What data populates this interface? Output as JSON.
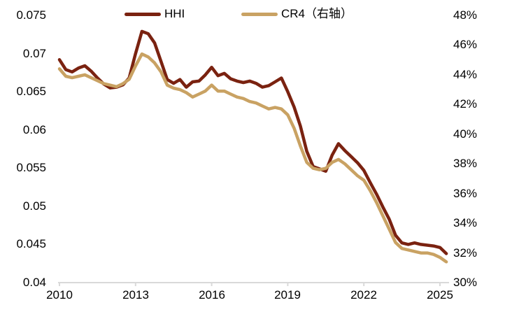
{
  "legend": [
    {
      "label": "HHI",
      "color": "#7A2210"
    },
    {
      "label": "CR4（右轴）",
      "color": "#C9A263"
    }
  ],
  "chart_data": {
    "type": "line",
    "title": "",
    "xlabel": "",
    "ylabel_left": "",
    "ylabel_right": "",
    "grid": false,
    "legend_position": "top-center",
    "axis_line_color": "#D9D9D9",
    "text_color": "#000000",
    "left_axis": {
      "min": 0.04,
      "max": 0.075,
      "tick_values": [
        0.075,
        0.07,
        0.065,
        0.06,
        0.055,
        0.05,
        0.045,
        0.04
      ],
      "tick_labels": [
        "0.075",
        "0.07",
        "0.065",
        "0.06",
        "0.055",
        "0.05",
        "0.045",
        "0.04"
      ]
    },
    "right_axis": {
      "min": 30,
      "max": 48,
      "tick_values": [
        48,
        46,
        44,
        42,
        40,
        38,
        36,
        34,
        32,
        30
      ],
      "tick_labels": [
        "48%",
        "46%",
        "44%",
        "42%",
        "40%",
        "38%",
        "36%",
        "34%",
        "32%",
        "30%"
      ]
    },
    "x_axis": {
      "min": 2010,
      "max": 2025.35,
      "tick_values": [
        2010,
        2013,
        2016,
        2019,
        2022,
        2025
      ],
      "tick_labels": [
        "2010",
        "2013",
        "2016",
        "2019",
        "2022",
        "2025"
      ]
    },
    "x": [
      2010,
      2010.25,
      2010.5,
      2010.75,
      2011,
      2011.25,
      2011.5,
      2011.75,
      2012,
      2012.25,
      2012.5,
      2012.75,
      2013,
      2013.25,
      2013.5,
      2013.75,
      2014,
      2014.25,
      2014.5,
      2014.75,
      2015,
      2015.25,
      2015.5,
      2015.75,
      2016,
      2016.25,
      2016.5,
      2016.75,
      2017,
      2017.25,
      2017.5,
      2017.75,
      2018,
      2018.25,
      2018.5,
      2018.75,
      2019,
      2019.25,
      2019.5,
      2019.75,
      2020,
      2020.25,
      2020.5,
      2020.75,
      2021,
      2021.25,
      2021.5,
      2021.75,
      2022,
      2022.25,
      2022.5,
      2022.75,
      2023,
      2023.25,
      2023.5,
      2023.75,
      2024,
      2024.25,
      2024.5,
      2024.75,
      2025,
      2025.25
    ],
    "series": [
      {
        "name": "HHI",
        "axis": "left",
        "color": "#7A2210",
        "values": [
          0.0692,
          0.0679,
          0.0676,
          0.0681,
          0.0684,
          0.0677,
          0.0668,
          0.066,
          0.0655,
          0.0656,
          0.0659,
          0.0668,
          0.07,
          0.0729,
          0.0726,
          0.0714,
          0.069,
          0.0666,
          0.0661,
          0.0666,
          0.0656,
          0.0663,
          0.0664,
          0.0672,
          0.0682,
          0.0671,
          0.0674,
          0.0667,
          0.0664,
          0.0662,
          0.0664,
          0.0661,
          0.0656,
          0.0658,
          0.0663,
          0.0668,
          0.065,
          0.063,
          0.0605,
          0.0572,
          0.0552,
          0.0549,
          0.0546,
          0.0567,
          0.0582,
          0.0573,
          0.0565,
          0.0557,
          0.0547,
          0.0531,
          0.0516,
          0.0499,
          0.0483,
          0.0462,
          0.0452,
          0.045,
          0.0452,
          0.045,
          0.0449,
          0.0448,
          0.0446,
          0.0438
        ]
      },
      {
        "name": "CR4（右轴）",
        "axis": "right",
        "color": "#C9A263",
        "values": [
          44.4,
          43.9,
          43.8,
          43.9,
          44.0,
          43.8,
          43.6,
          43.4,
          43.3,
          43.2,
          43.4,
          43.7,
          44.6,
          45.4,
          45.2,
          44.8,
          44.2,
          43.3,
          43.1,
          43.0,
          42.8,
          42.5,
          42.7,
          42.9,
          43.3,
          42.9,
          42.9,
          42.7,
          42.5,
          42.4,
          42.2,
          42.1,
          41.9,
          41.7,
          41.8,
          41.7,
          41.3,
          40.4,
          39.2,
          38.1,
          37.7,
          37.6,
          37.7,
          38.1,
          38.3,
          38.0,
          37.6,
          37.2,
          36.9,
          36.2,
          35.4,
          34.5,
          33.6,
          32.7,
          32.3,
          32.2,
          32.1,
          32.0,
          32.0,
          31.9,
          31.7,
          31.4
        ]
      }
    ]
  }
}
